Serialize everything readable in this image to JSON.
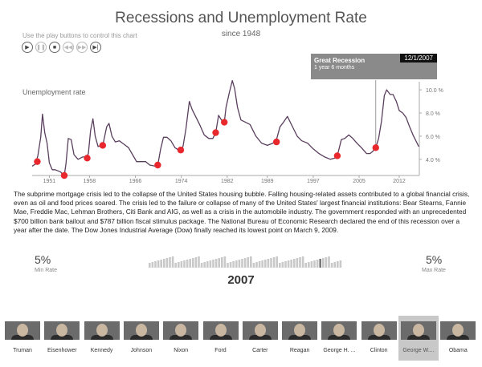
{
  "header": {
    "title": "Recessions and Unemployment Rate",
    "subtitle": "since 1948",
    "hint": "Use the play buttons to control this chart"
  },
  "controls": [
    {
      "name": "play-button",
      "glyph": "▶",
      "enabled": true
    },
    {
      "name": "pause-button",
      "glyph": "❚❚",
      "enabled": false
    },
    {
      "name": "stop-button",
      "glyph": "■",
      "enabled": true
    },
    {
      "name": "previous-button",
      "glyph": "◀◀",
      "enabled": false
    },
    {
      "name": "next-button",
      "glyph": "▶▶",
      "enabled": false
    },
    {
      "name": "end-button",
      "glyph": "▶|",
      "enabled": true
    }
  ],
  "tooltip": {
    "title": "Great Recession",
    "duration": "1 year 6 months",
    "date": "12/1/2007"
  },
  "chart_data": {
    "type": "line",
    "title": "Recessions and Unemployment Rate",
    "subtitle": "since 1948",
    "ylabel": "Unemployment rate",
    "xlim": [
      1948,
      2015.5
    ],
    "ylim": [
      2.6,
      10.7
    ],
    "xticks": [
      1951,
      1958,
      1966,
      1974,
      1982,
      1989,
      1997,
      2005,
      2012
    ],
    "yticks": [
      4,
      6,
      8,
      10
    ],
    "ytick_labels": [
      "4.0 %",
      "6.0 %",
      "8.0 %",
      "10.0 %"
    ],
    "grid": false,
    "line_color": "#5a3e5e",
    "marker_color": "#e8282c",
    "series": [
      {
        "values": [
          [
            1948.0,
            3.4
          ],
          [
            1948.6,
            3.6
          ],
          [
            1949.0,
            4.3
          ],
          [
            1949.5,
            5.9
          ],
          [
            1949.8,
            7.9
          ],
          [
            1950.2,
            6.3
          ],
          [
            1950.6,
            5.4
          ],
          [
            1951.0,
            3.7
          ],
          [
            1951.5,
            3.1
          ],
          [
            1952.0,
            3.1
          ],
          [
            1952.5,
            3.0
          ],
          [
            1953.0,
            2.9
          ],
          [
            1953.3,
            2.7
          ],
          [
            1953.6,
            2.6
          ],
          [
            1953.9,
            3.6
          ],
          [
            1954.3,
            5.8
          ],
          [
            1954.8,
            5.7
          ],
          [
            1955.3,
            4.4
          ],
          [
            1956.0,
            4.0
          ],
          [
            1956.8,
            4.2
          ],
          [
            1957.5,
            4.2
          ],
          [
            1957.8,
            4.5
          ],
          [
            1958.2,
            6.5
          ],
          [
            1958.6,
            7.5
          ],
          [
            1959.0,
            6.0
          ],
          [
            1959.5,
            5.1
          ],
          [
            1960.0,
            5.2
          ],
          [
            1960.4,
            5.4
          ],
          [
            1961.0,
            6.8
          ],
          [
            1961.4,
            7.1
          ],
          [
            1961.9,
            6.0
          ],
          [
            1962.5,
            5.5
          ],
          [
            1963.2,
            5.6
          ],
          [
            1964.0,
            5.3
          ],
          [
            1964.8,
            5.0
          ],
          [
            1965.5,
            4.4
          ],
          [
            1966.2,
            3.8
          ],
          [
            1967.0,
            3.8
          ],
          [
            1967.8,
            3.8
          ],
          [
            1968.5,
            3.5
          ],
          [
            1969.5,
            3.4
          ],
          [
            1969.9,
            3.5
          ],
          [
            1970.4,
            4.9
          ],
          [
            1970.9,
            5.9
          ],
          [
            1971.5,
            5.9
          ],
          [
            1972.2,
            5.6
          ],
          [
            1972.9,
            5.0
          ],
          [
            1973.5,
            4.8
          ],
          [
            1973.9,
            4.8
          ],
          [
            1974.3,
            5.1
          ],
          [
            1974.8,
            6.6
          ],
          [
            1975.4,
            9.0
          ],
          [
            1975.9,
            8.3
          ],
          [
            1976.5,
            7.7
          ],
          [
            1977.2,
            7.0
          ],
          [
            1978.0,
            6.1
          ],
          [
            1978.8,
            5.8
          ],
          [
            1979.5,
            5.8
          ],
          [
            1980.0,
            6.3
          ],
          [
            1980.5,
            7.8
          ],
          [
            1981.0,
            7.4
          ],
          [
            1981.5,
            7.2
          ],
          [
            1981.8,
            8.5
          ],
          [
            1982.4,
            9.8
          ],
          [
            1982.9,
            10.8
          ],
          [
            1983.3,
            10.1
          ],
          [
            1983.8,
            8.5
          ],
          [
            1984.4,
            7.4
          ],
          [
            1985.2,
            7.2
          ],
          [
            1986.0,
            7.0
          ],
          [
            1987.0,
            6.0
          ],
          [
            1988.0,
            5.4
          ],
          [
            1989.0,
            5.2
          ],
          [
            1990.0,
            5.4
          ],
          [
            1990.6,
            5.7
          ],
          [
            1991.2,
            6.8
          ],
          [
            1991.8,
            7.2
          ],
          [
            1992.5,
            7.7
          ],
          [
            1993.3,
            6.9
          ],
          [
            1994.2,
            6.0
          ],
          [
            1995.0,
            5.6
          ],
          [
            1996.0,
            5.4
          ],
          [
            1997.0,
            4.9
          ],
          [
            1998.0,
            4.5
          ],
          [
            1999.0,
            4.2
          ],
          [
            2000.0,
            4.0
          ],
          [
            2000.8,
            4.1
          ],
          [
            2001.3,
            4.5
          ],
          [
            2001.9,
            5.7
          ],
          [
            2002.5,
            5.8
          ],
          [
            2003.2,
            6.1
          ],
          [
            2003.9,
            5.8
          ],
          [
            2004.6,
            5.4
          ],
          [
            2005.4,
            5.0
          ],
          [
            2006.3,
            4.5
          ],
          [
            2006.9,
            4.5
          ],
          [
            2007.4,
            4.7
          ],
          [
            2007.9,
            5.0
          ],
          [
            2008.4,
            5.8
          ],
          [
            2008.9,
            7.3
          ],
          [
            2009.4,
            9.5
          ],
          [
            2009.8,
            10.0
          ],
          [
            2010.4,
            9.6
          ],
          [
            2010.9,
            9.6
          ],
          [
            2011.5,
            9.0
          ],
          [
            2012.0,
            8.2
          ],
          [
            2012.6,
            8.0
          ],
          [
            2013.2,
            7.6
          ],
          [
            2013.8,
            6.8
          ],
          [
            2014.4,
            6.1
          ],
          [
            2015.0,
            5.5
          ],
          [
            2015.4,
            5.1
          ]
        ]
      }
    ],
    "recession_markers": [
      {
        "x": 1948.9,
        "y": 3.8
      },
      {
        "x": 1953.6,
        "y": 2.6
      },
      {
        "x": 1957.6,
        "y": 4.1
      },
      {
        "x": 1960.3,
        "y": 5.2
      },
      {
        "x": 1969.9,
        "y": 3.5
      },
      {
        "x": 1973.9,
        "y": 4.8
      },
      {
        "x": 1980.0,
        "y": 6.3
      },
      {
        "x": 1981.5,
        "y": 7.2
      },
      {
        "x": 1990.6,
        "y": 5.5
      },
      {
        "x": 2001.2,
        "y": 4.3
      },
      {
        "x": 2007.9,
        "y": 5.0
      }
    ],
    "current_year": 2007.9
  },
  "description": "The subprime mortgage crisis led to the collapse of the United States housing bubble. Falling housing-related assets contributed to a global financial crisis, even as oil and food prices soared. The crisis led to the failure or collapse of many of the United States' largest financial institutions: Bear Stearns, Fannie Mae, Freddie Mac, Lehman Brothers, Citi Bank and AIG, as well as a crisis in the automobile industry. The government responded with an unprecedented $700 billion bank bailout and $787 billion fiscal stimulus package. The National Bureau of Economic Research declared the end of this recession over a year after the date. The Dow Jones Industrial Average (Dow) finally reached its lowest point on March 9, 2009.",
  "stats": {
    "min_value": "5%",
    "min_label": "Min Rate",
    "max_value": "5%",
    "max_label": "Max Rate",
    "year": "2007"
  },
  "timeline": {
    "bar_count": 67,
    "selected_index": 59,
    "bar_color": "#c9c9c9",
    "selected_color": "#777777"
  },
  "presidents": [
    {
      "name": "Truman",
      "selected": false
    },
    {
      "name": "Eisenhower",
      "selected": false
    },
    {
      "name": "Kennedy",
      "selected": false
    },
    {
      "name": "Johnson",
      "selected": false
    },
    {
      "name": "Nixon",
      "selected": false
    },
    {
      "name": "Ford",
      "selected": false
    },
    {
      "name": "Carter",
      "selected": false
    },
    {
      "name": "Reagan",
      "selected": false
    },
    {
      "name": "George H. ...",
      "selected": false
    },
    {
      "name": "Clinton",
      "selected": false
    },
    {
      "name": "George W....",
      "selected": true
    },
    {
      "name": "Obama",
      "selected": false
    }
  ]
}
